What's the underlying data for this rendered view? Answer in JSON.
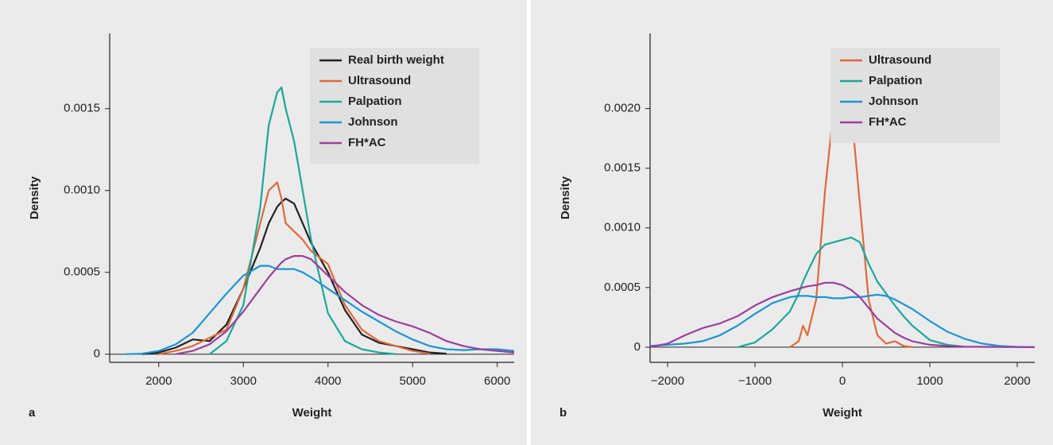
{
  "chart_data": [
    {
      "type": "line",
      "panel_label": "a",
      "x_label": "Weight",
      "y_label": "Density",
      "xlim": [
        1420,
        6200
      ],
      "ylim": [
        -5e-05,
        0.00196
      ],
      "xticks": [
        2000,
        3000,
        4000,
        5000,
        6000
      ],
      "yticks": [
        0,
        0.0005,
        {
          "value": 0.001,
          "label": "0.0010"
        },
        0.0015
      ],
      "legend": "top-right",
      "x": [
        1600,
        1800,
        2000,
        2200,
        2400,
        2600,
        2800,
        3000,
        3200,
        3300,
        3400,
        3450,
        3500,
        3600,
        3700,
        3800,
        4000,
        4200,
        4400,
        4600,
        4800,
        5000,
        5200,
        5400,
        5600,
        5800,
        6000,
        6200
      ],
      "series": [
        {
          "name": "Real birth weight",
          "color": "#222222",
          "values": [
            null,
            0,
            1e-05,
            4e-05,
            9e-05,
            8e-05,
            0.00018,
            0.0004,
            0.00065,
            0.0008,
            0.0009,
            0.00093,
            0.00095,
            0.00092,
            0.0008,
            0.00068,
            0.0005,
            0.00027,
            0.00012,
            7e-05,
            5e-05,
            3e-05,
            1e-05,
            3e-06,
            null,
            null,
            null,
            null
          ]
        },
        {
          "name": "Ultrasound",
          "color": "#e0693a",
          "values": [
            null,
            null,
            0,
            2e-05,
            5e-05,
            0.0001,
            0.00015,
            0.0004,
            0.0008,
            0.001,
            0.00105,
            0.00095,
            0.0008,
            0.00075,
            0.0007,
            0.00063,
            0.00055,
            0.0003,
            0.00015,
            8e-05,
            5e-05,
            2e-05,
            3e-06,
            null,
            null,
            null,
            null,
            null
          ]
        },
        {
          "name": "Palpation",
          "color": "#1aa89a",
          "values": [
            null,
            null,
            null,
            null,
            null,
            0,
            8e-05,
            0.0003,
            0.0009,
            0.0014,
            0.0016,
            0.00163,
            0.0015,
            0.0013,
            0.001,
            0.0007,
            0.00025,
            8e-05,
            3e-05,
            1e-05,
            0,
            null,
            null,
            null,
            null,
            null,
            null,
            null
          ]
        },
        {
          "name": "Johnson",
          "color": "#1a96d6",
          "values": [
            0,
            3e-06,
            2e-05,
            6e-05,
            0.00013,
            0.00025,
            0.00037,
            0.00048,
            0.00054,
            0.00054,
            0.00052,
            0.00052,
            0.00052,
            0.00052,
            0.0005,
            0.00047,
            0.0004,
            0.00033,
            0.00026,
            0.0002,
            0.00014,
            9e-05,
            5e-05,
            3e-05,
            2.5e-05,
            3e-05,
            3e-05,
            2e-05
          ]
        },
        {
          "name": "FH*AC",
          "color": "#9b3f9e",
          "values": [
            null,
            null,
            null,
            0,
            2e-05,
            6e-05,
            0.00014,
            0.00026,
            0.0004,
            0.00047,
            0.00053,
            0.00056,
            0.00058,
            0.0006,
            0.0006,
            0.00058,
            0.00048,
            0.00038,
            0.0003,
            0.00024,
            0.0002,
            0.00017,
            0.00013,
            8e-05,
            5e-05,
            3e-05,
            2e-05,
            1e-05
          ]
        }
      ]
    },
    {
      "type": "line",
      "panel_label": "b",
      "x_label": "Weight",
      "y_label": "Density",
      "xlim": [
        -2200,
        2200
      ],
      "ylim": [
        -0.000127,
        0.00263
      ],
      "xticks": [
        {
          "value": -2000,
          "label": "−2000"
        },
        {
          "value": -1000,
          "label": "−1000"
        },
        0,
        1000,
        2000
      ],
      "yticks": [
        0,
        0.0005,
        {
          "value": 0.001,
          "label": "0.0010"
        },
        0.0015,
        {
          "value": 0.002,
          "label": "0.0020"
        }
      ],
      "legend": "top-right",
      "x": [
        -2200,
        -2000,
        -1800,
        -1600,
        -1400,
        -1200,
        -1000,
        -800,
        -600,
        -500,
        -450,
        -400,
        -300,
        -200,
        -100,
        0,
        100,
        200,
        300,
        400,
        500,
        600,
        700,
        800,
        1000,
        1200,
        1400,
        1600,
        1800,
        2000,
        2200
      ],
      "series": [
        {
          "name": "Ultrasound",
          "color": "#e0693a",
          "values": [
            null,
            null,
            null,
            null,
            null,
            null,
            null,
            null,
            0,
            5e-05,
            0.00018,
            0.0001,
            0.0004,
            0.0013,
            0.002,
            0.00228,
            0.002,
            0.0012,
            0.0004,
            0.0001,
            3e-05,
            5e-05,
            1e-05,
            0,
            null,
            null,
            null,
            null,
            null,
            null,
            null
          ]
        },
        {
          "name": "Palpation",
          "color": "#1aa89a",
          "values": [
            null,
            null,
            null,
            null,
            null,
            0,
            4e-05,
            0.00015,
            0.0003,
            0.00045,
            0.00055,
            0.00063,
            0.00078,
            0.00086,
            0.00088,
            0.0009,
            0.00092,
            0.00088,
            0.0007,
            0.00055,
            0.00045,
            0.00035,
            0.00026,
            0.00018,
            6e-05,
            2e-05,
            3e-06,
            null,
            null,
            null,
            null
          ]
        },
        {
          "name": "Johnson",
          "color": "#1a96d6",
          "values": [
            1e-05,
            2e-05,
            3e-05,
            5e-05,
            0.0001,
            0.00018,
            0.00028,
            0.00037,
            0.00042,
            0.00043,
            0.00043,
            0.00043,
            0.00042,
            0.00042,
            0.00041,
            0.00041,
            0.00042,
            0.00042,
            0.00043,
            0.00044,
            0.00043,
            0.0004,
            0.00036,
            0.00032,
            0.00022,
            0.00013,
            7e-05,
            3e-05,
            1e-05,
            3e-06,
            0
          ]
        },
        {
          "name": "FH*AC",
          "color": "#9b3f9e",
          "values": [
            3e-06,
            3e-05,
            0.0001,
            0.00016,
            0.0002,
            0.00026,
            0.00035,
            0.00042,
            0.00047,
            0.00049,
            0.0005,
            0.00051,
            0.00052,
            0.00054,
            0.00054,
            0.00052,
            0.00048,
            0.00042,
            0.00033,
            0.00024,
            0.00018,
            0.00012,
            8e-05,
            5e-05,
            2e-05,
            1e-05,
            5e-06,
            3e-06,
            2e-06,
            1e-06,
            0
          ]
        }
      ]
    }
  ]
}
